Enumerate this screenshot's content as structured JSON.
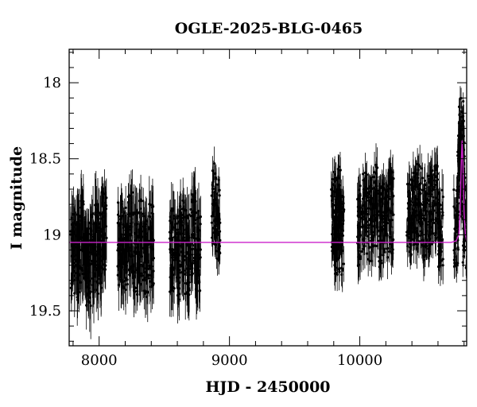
{
  "chart_data": {
    "type": "scatter",
    "title": "OGLE-2025-BLG-0465",
    "xlabel": "HJD - 2450000",
    "ylabel": "I magnitude",
    "xlim": [
      7770,
      10820
    ],
    "ylim": [
      19.73,
      17.78
    ],
    "y_inverted": true,
    "x_ticks": [
      8000,
      9000,
      10000
    ],
    "y_ticks": [
      18,
      18.5,
      19,
      19.5
    ],
    "x_ticks_labels": [
      "8000",
      "9000",
      "10000"
    ],
    "y_ticks_labels": [
      "18",
      "18.5",
      "19",
      "19.5"
    ],
    "grid": false,
    "colors": {
      "points": "#000000",
      "model": "#cc22cc"
    },
    "series": [
      {
        "kind": "observations",
        "x": [
          7800,
          7840,
          7880,
          7920,
          7960,
          8000,
          8040,
          8160,
          8200,
          8240,
          8280,
          8320,
          8360,
          8400,
          8560,
          8600,
          8640,
          8680,
          8720,
          8760,
          8880,
          8910,
          9800,
          9820,
          9840,
          9860,
          10000,
          10040,
          10080,
          10120,
          10160,
          10200,
          10240,
          10380,
          10420,
          10460,
          10500,
          10540,
          10580,
          10620,
          10740,
          10770,
          10780,
          10790,
          10810
        ],
        "y": [
          19.1,
          19.15,
          19.05,
          19.2,
          19.08,
          19.12,
          19.0,
          19.05,
          19.1,
          19.0,
          19.12,
          19.05,
          19.15,
          19.08,
          19.1,
          19.15,
          19.05,
          19.12,
          19.0,
          19.1,
          18.8,
          18.9,
          18.85,
          19.0,
          18.8,
          19.0,
          18.95,
          18.85,
          18.9,
          18.8,
          18.95,
          18.9,
          18.85,
          18.9,
          18.85,
          18.8,
          18.9,
          18.85,
          18.8,
          18.95,
          18.95,
          18.6,
          18.35,
          18.65,
          18.95
        ],
        "err": [
          0.15,
          0.15,
          0.15,
          0.15,
          0.15,
          0.15,
          0.15,
          0.13,
          0.13,
          0.13,
          0.13,
          0.13,
          0.13,
          0.13,
          0.13,
          0.13,
          0.13,
          0.13,
          0.13,
          0.13,
          0.08,
          0.08,
          0.1,
          0.1,
          0.1,
          0.1,
          0.1,
          0.1,
          0.1,
          0.1,
          0.1,
          0.1,
          0.1,
          0.1,
          0.1,
          0.1,
          0.1,
          0.1,
          0.1,
          0.1,
          0.08,
          0.08,
          0.08,
          0.08,
          0.08
        ]
      },
      {
        "kind": "model",
        "baseline": 19.05,
        "peak_x": 10785,
        "peak_y": 18.38,
        "x": [
          7770,
          10700,
          10740,
          10760,
          10770,
          10778,
          10785,
          10792,
          10800,
          10810,
          10820
        ],
        "y": [
          19.05,
          19.05,
          19.04,
          19.0,
          18.85,
          18.55,
          18.38,
          18.55,
          18.85,
          19.0,
          19.04
        ]
      }
    ]
  }
}
